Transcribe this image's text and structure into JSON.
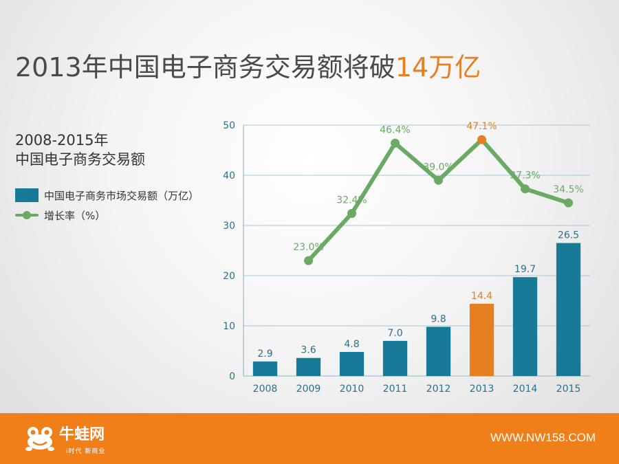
{
  "headline": {
    "text": "2013年中国电子商务交易额将破",
    "highlight": "14万亿"
  },
  "subtitle": {
    "line1": "2008-2015年",
    "line2": "中国电子商务交易额"
  },
  "legend": {
    "bar_label": "中国电子商务市场交易额（万亿）",
    "line_label": "增长率（%）"
  },
  "colors": {
    "bar": "#177a96",
    "highlight": "#e67e22",
    "line": "#6aaa64",
    "axis_text": "#2b6f8c"
  },
  "footer": {
    "brand": "牛蛙网",
    "slogan": "i时代 新商业",
    "url": "WWW.NW158.COM"
  },
  "chart_data": {
    "type": "bar",
    "categories": [
      "2008",
      "2009",
      "2010",
      "2011",
      "2012",
      "2013",
      "2014",
      "2015"
    ],
    "series": [
      {
        "name": "中国电子商务市场交易额（万亿）",
        "type": "bar",
        "values": [
          2.9,
          3.6,
          4.8,
          7.0,
          9.8,
          14.4,
          19.7,
          26.5
        ],
        "value_labels": [
          "2.9",
          "3.6",
          "4.8",
          "7.0",
          "9.8",
          "14.4",
          "19.7",
          "26.5"
        ],
        "highlight_index": 5
      },
      {
        "name": "增长率（%）",
        "type": "line",
        "values": [
          null,
          23.0,
          32.4,
          46.4,
          39.0,
          47.1,
          37.3,
          34.5
        ],
        "value_labels": [
          null,
          "23.0%",
          "32.4%",
          "46.4%",
          "39.0%",
          "47.1%",
          "37.3%",
          "34.5%"
        ],
        "highlight_index": 5
      }
    ],
    "ylim": [
      0,
      50
    ],
    "yticks": [
      "0",
      "10",
      "20",
      "30",
      "40",
      "50"
    ],
    "grid": true,
    "legend_position": "left"
  }
}
